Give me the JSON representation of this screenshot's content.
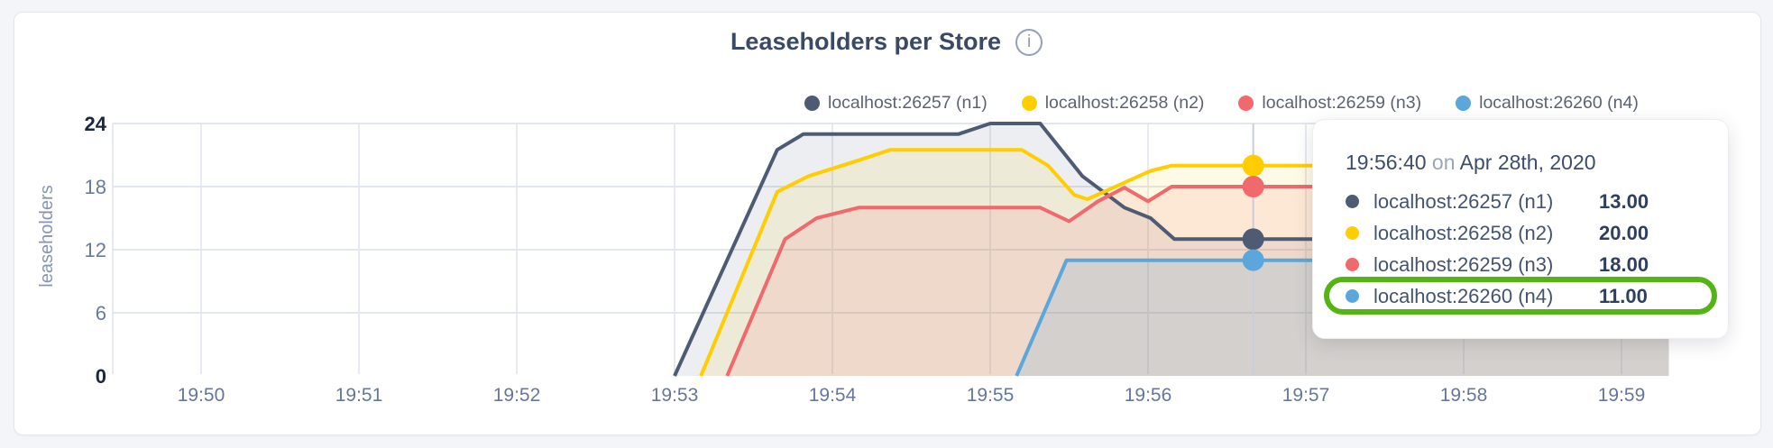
{
  "header": {
    "title": "Leaseholders per Store",
    "info_icon": "i"
  },
  "legend": {
    "items": [
      {
        "label": "localhost:26257 (n1)"
      },
      {
        "label": "localhost:26258 (n2)"
      },
      {
        "label": "localhost:26259 (n3)"
      },
      {
        "label": "localhost:26260 (n4)"
      }
    ]
  },
  "tooltip": {
    "time": "19:56:40",
    "connector": " on ",
    "date": "Apr 28th, 2020",
    "highlight_color": "#53b413",
    "rows": [
      {
        "label": "localhost:26257 (n1)",
        "value": "13.00",
        "highlighted": false
      },
      {
        "label": "localhost:26258 (n2)",
        "value": "20.00",
        "highlighted": false
      },
      {
        "label": "localhost:26259 (n3)",
        "value": "18.00",
        "highlighted": false
      },
      {
        "label": "localhost:26260 (n4)",
        "value": "11.00",
        "highlighted": true
      }
    ]
  },
  "chart_data": {
    "type": "area",
    "title": "Leaseholders per Store",
    "xlabel": "",
    "ylabel": "leaseholders",
    "ylim": [
      0,
      24
    ],
    "grid": true,
    "legend_position": "top",
    "x_unit": "seconds after 19:50:00",
    "x_ticks": [
      {
        "t": 0,
        "label": "19:50"
      },
      {
        "t": 60,
        "label": "19:51"
      },
      {
        "t": 120,
        "label": "19:52"
      },
      {
        "t": 180,
        "label": "19:53"
      },
      {
        "t": 240,
        "label": "19:54"
      },
      {
        "t": 300,
        "label": "19:55"
      },
      {
        "t": 360,
        "label": "19:56"
      },
      {
        "t": 420,
        "label": "19:57"
      },
      {
        "t": 480,
        "label": "19:58"
      },
      {
        "t": 540,
        "label": "19:59"
      }
    ],
    "y_ticks": [
      {
        "v": 0,
        "bold": true
      },
      {
        "v": 6,
        "bold": false
      },
      {
        "v": 12,
        "bold": false
      },
      {
        "v": 18,
        "bold": false
      },
      {
        "v": 24,
        "bold": true
      }
    ],
    "series": [
      {
        "name": "localhost:26257 (n1)",
        "color": "#4E5B73",
        "fill_opacity": 0.1,
        "points": [
          [
            180,
            0
          ],
          [
            219,
            21.5
          ],
          [
            229,
            23
          ],
          [
            288,
            23
          ],
          [
            300,
            24
          ],
          [
            319,
            24
          ],
          [
            335,
            19
          ],
          [
            351,
            16
          ],
          [
            361,
            15
          ],
          [
            370,
            13
          ],
          [
            558,
            13
          ]
        ]
      },
      {
        "name": "localhost:26258 (n2)",
        "color": "#FFCD00",
        "fill_opacity": 0.1,
        "points": [
          [
            190,
            0
          ],
          [
            219,
            17.5
          ],
          [
            231,
            19
          ],
          [
            250,
            20.5
          ],
          [
            262,
            21.5
          ],
          [
            312,
            21.5
          ],
          [
            322,
            20
          ],
          [
            332,
            17.2
          ],
          [
            337,
            16.8
          ],
          [
            361,
            19.5
          ],
          [
            369,
            20
          ],
          [
            558,
            20
          ]
        ]
      },
      {
        "name": "localhost:26259 (n3)",
        "color": "#F0696C",
        "fill_opacity": 0.13,
        "points": [
          [
            200,
            0
          ],
          [
            222,
            13
          ],
          [
            234,
            15
          ],
          [
            250,
            16
          ],
          [
            319,
            16
          ],
          [
            330,
            14.7
          ],
          [
            341,
            16.6
          ],
          [
            351,
            17.9
          ],
          [
            360,
            16.6
          ],
          [
            369,
            18
          ],
          [
            558,
            18
          ]
        ]
      },
      {
        "name": "localhost:26260 (n4)",
        "color": "#5BA7DB",
        "fill_opacity": 0.18,
        "points": [
          [
            310,
            0
          ],
          [
            329,
            11
          ],
          [
            558,
            11
          ]
        ]
      }
    ],
    "crosshair": {
      "t": 400,
      "time_label": "19:56:40 on Apr 28th, 2020",
      "values": [
        13,
        20,
        18,
        11
      ]
    }
  }
}
